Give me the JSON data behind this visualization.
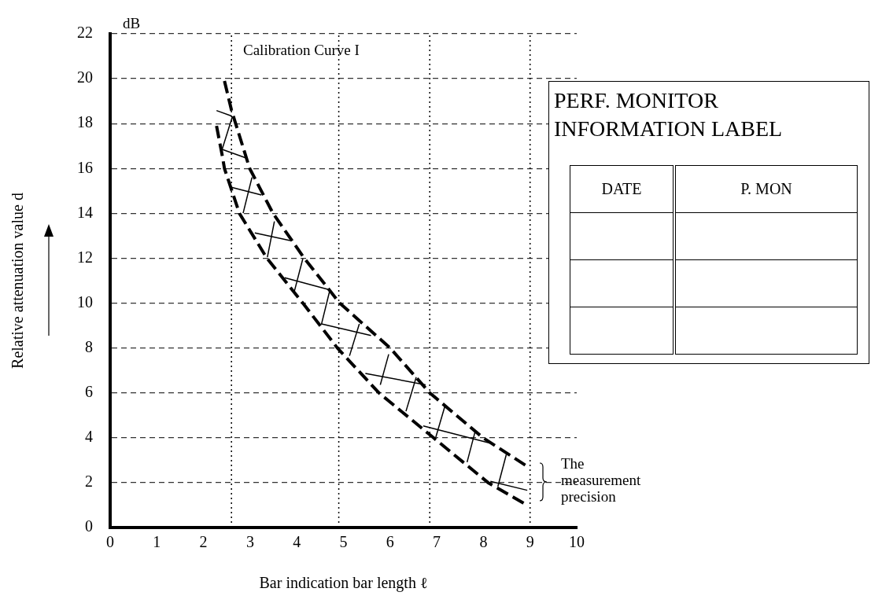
{
  "chart_data": [
    {
      "type": "line",
      "xlabel": "Bar indication bar length ℓ",
      "ylabel": "Relative attenuation value d",
      "annotations": [
        "dB",
        "Calibration Curve I",
        "The measurement precision"
      ],
      "xlim": [
        0,
        10
      ],
      "ylim": [
        0,
        22
      ],
      "xticks": [
        0,
        1,
        2,
        3,
        4,
        5,
        6,
        7,
        8,
        9,
        10
      ],
      "yticks": [
        0,
        2,
        4,
        6,
        8,
        10,
        12,
        14,
        16,
        18,
        20,
        22
      ],
      "grid": "y",
      "legend": false,
      "marker": "none",
      "series": [
        {
          "color": "#000000",
          "line_style": "dashed",
          "x": [
            2.45,
            2.6,
            2.99,
            3.49,
            4.16,
            4.92,
            6.0,
            6.85,
            7.99,
            8.98
          ],
          "values": [
            19.9,
            18.6,
            16,
            14,
            12,
            10,
            8,
            6,
            4,
            2.67
          ]
        },
        {
          "color": "#000000",
          "line_style": "dashed",
          "x": [
            2.28,
            2.4,
            2.45,
            2.77,
            3.36,
            4.13,
            4.87,
            5.76,
            6.93,
            8.1,
            8.89
          ],
          "values": [
            17.9,
            16.6,
            16,
            14,
            12,
            10,
            8,
            6,
            4,
            2,
            1.05
          ]
        },
        {
          "color": "#000000",
          "line_style": "solid",
          "x": [
            2.28,
            2.6,
            null,
            2.62,
            2.4,
            2.94,
            null,
            2.6,
            3.24,
            null,
            3.04,
            2.85,
            null,
            3.1,
            3.86,
            null,
            3.52,
            3.37,
            null,
            3.74,
            4.71,
            4.53,
            5.59,
            null,
            4.13,
            3.94,
            null,
            5.34,
            5.13,
            null,
            5.47,
            6.76,
            null,
            5.97,
            5.79,
            null,
            6.56,
            6.34,
            null,
            7.18,
            6.98,
            null,
            6.71,
            8.15,
            null,
            7.82,
            7.65,
            null,
            8.49,
            8.31,
            null,
            8.15,
            8.94
          ],
          "values": [
            18.58,
            18.34,
            null,
            18.31,
            16.85,
            16.45,
            null,
            15.16,
            14.82,
            null,
            15.6,
            14.01,
            null,
            13.13,
            12.79,
            null,
            13.64,
            12.05,
            null,
            11.13,
            10.59,
            9.07,
            8.56,
            null,
            11.98,
            10.46,
            null,
            9.07,
            7.65,
            null,
            6.87,
            6.36,
            null,
            7.72,
            6.36,
            null,
            6.7,
            5.18,
            null,
            5.45,
            4.03,
            null,
            4.53,
            3.76,
            null,
            4.26,
            2.91,
            null,
            3.25,
            1.83,
            null,
            2.06,
            1.66
          ]
        }
      ],
      "ref_lines": [
        {
          "axis": "x",
          "value": 2.6,
          "line_style": "dotted"
        },
        {
          "axis": "x",
          "value": 4.9,
          "line_style": "dotted"
        },
        {
          "axis": "x",
          "value": 6.85,
          "line_style": "dotted"
        },
        {
          "axis": "x",
          "value": 9,
          "line_style": "dotted"
        }
      ]
    },
    {
      "type": "other",
      "title": "PERF. MONITOR INFORMATION LABEL",
      "categories": [
        "DATE",
        "P. MON"
      ]
    }
  ]
}
